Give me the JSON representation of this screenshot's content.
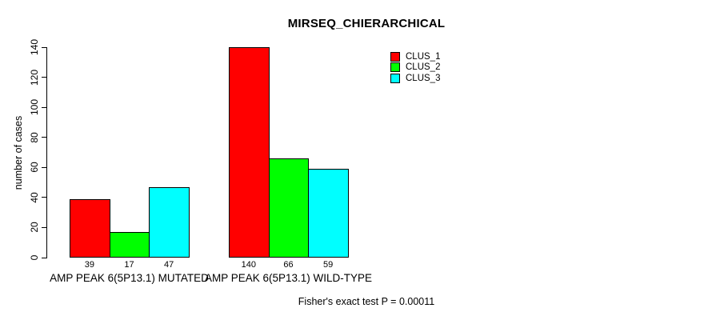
{
  "chart_data": {
    "type": "bar",
    "title": "MIRSEQ_CHIERARCHICAL",
    "xlabel": "",
    "ylabel": "number of cases",
    "ylim": [
      0,
      140
    ],
    "yticks": [
      0,
      20,
      40,
      60,
      80,
      100,
      120,
      140
    ],
    "grid": false,
    "legend_position": "top-right",
    "show_bar_values": true,
    "categories": [
      "AMP PEAK 6(5P13.1) MUTATED",
      "AMP PEAK 6(5P13.1) WILD-TYPE"
    ],
    "series": [
      {
        "name": "CLUS_1",
        "color": "#ff0000",
        "values": [
          39,
          140
        ]
      },
      {
        "name": "CLUS_2",
        "color": "#00ff00",
        "values": [
          17,
          66
        ]
      },
      {
        "name": "CLUS_3",
        "color": "#00ffff",
        "values": [
          47,
          59
        ]
      }
    ],
    "annotation": "Fisher's exact test P = 0.00011"
  },
  "colors": {
    "background": "#ffffff",
    "axis": "#000000",
    "text": "#000000",
    "bar_border": "#000000"
  }
}
